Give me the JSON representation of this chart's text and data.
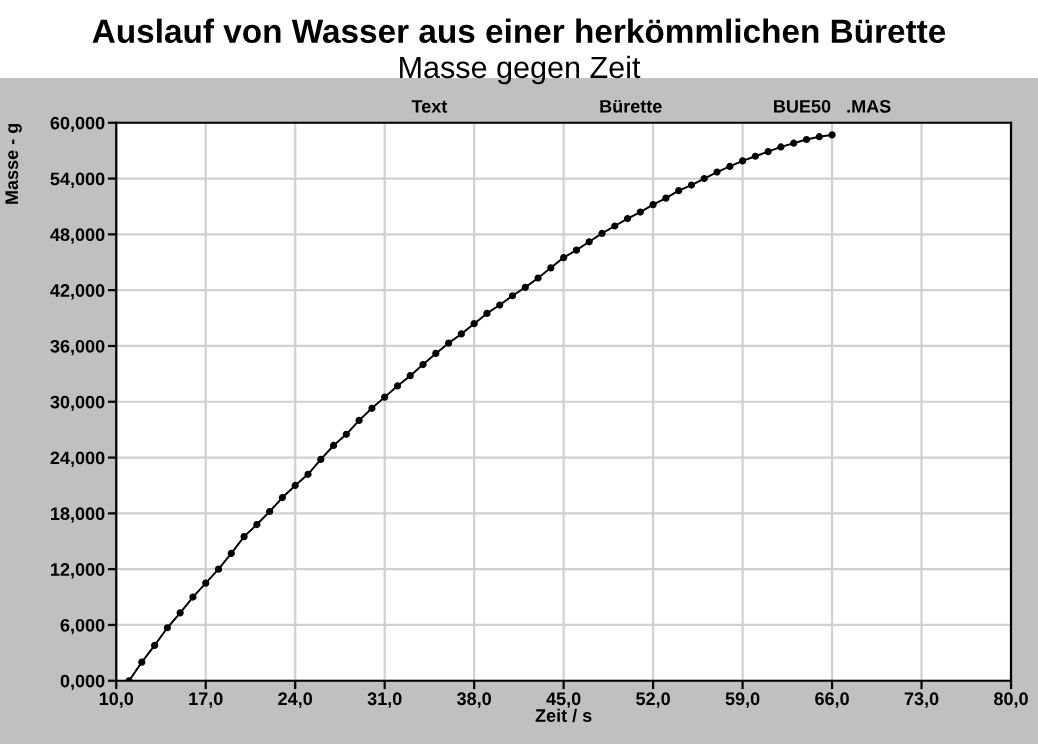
{
  "chart_data": {
    "type": "line",
    "title": "Auslauf von Wasser aus einer herkömmlichen Bürette",
    "subtitle": "Masse gegen Zeit",
    "annotations": [
      "Text",
      "Bürette",
      "BUE50   .MAS"
    ],
    "xlabel": "Zeit / s",
    "ylabel": "Masse - g",
    "x": [
      11,
      12,
      13,
      14,
      15,
      16,
      17,
      18,
      19,
      20,
      21,
      22,
      23,
      24,
      25,
      26,
      27,
      28,
      29,
      30,
      31,
      32,
      33,
      34,
      35,
      36,
      37,
      38,
      39,
      40,
      41,
      42,
      43,
      44,
      45,
      46,
      47,
      48,
      49,
      50,
      51,
      52,
      53,
      54,
      55,
      56,
      57,
      58,
      59,
      60,
      61,
      62,
      63,
      64,
      65,
      66
    ],
    "series": [
      {
        "color": "#000000",
        "values": [
          0,
          2.0,
          3.8,
          5.7,
          7.3,
          9.0,
          10.5,
          12.0,
          13.7,
          15.5,
          16.8,
          18.2,
          19.7,
          21.0,
          22.2,
          23.8,
          25.3,
          26.5,
          28.0,
          29.3,
          30.5,
          31.7,
          32.8,
          34.0,
          35.2,
          36.3,
          37.3,
          38.4,
          39.5,
          40.4,
          41.4,
          42.3,
          43.3,
          44.4,
          45.5,
          46.3,
          47.2,
          48.1,
          48.9,
          49.7,
          50.4,
          51.2,
          51.9,
          52.7,
          53.3,
          54.0,
          54.7,
          55.3,
          55.9,
          56.4,
          56.9,
          57.4,
          57.8,
          58.2,
          58.5,
          58.7
        ]
      }
    ],
    "xlim": [
      10,
      80
    ],
    "xticks": [
      {
        "value": 10,
        "label": "10,0"
      },
      {
        "value": 17,
        "label": "17,0"
      },
      {
        "value": 24,
        "label": "24,0"
      },
      {
        "value": 31,
        "label": "31,0"
      },
      {
        "value": 38,
        "label": "38,0"
      },
      {
        "value": 45,
        "label": "45,0"
      },
      {
        "value": 52,
        "label": "52,0"
      },
      {
        "value": 59,
        "label": "59,0"
      },
      {
        "value": 66,
        "label": "66,0"
      },
      {
        "value": 73,
        "label": "73,0"
      },
      {
        "value": 80,
        "label": "80,0"
      }
    ],
    "ylim": [
      0,
      60
    ],
    "yticks": [
      {
        "value": 0,
        "label": "0,000"
      },
      {
        "value": 6,
        "label": "6,000"
      },
      {
        "value": 12,
        "label": "12,000"
      },
      {
        "value": 18,
        "label": "18,000"
      },
      {
        "value": 24,
        "label": "24,000"
      },
      {
        "value": 30,
        "label": "30,000"
      },
      {
        "value": 36,
        "label": "36,000"
      },
      {
        "value": 42,
        "label": "42,000"
      },
      {
        "value": 48,
        "label": "48,000"
      },
      {
        "value": 54,
        "label": "54,000"
      },
      {
        "value": 60,
        "label": "60,000"
      }
    ],
    "grid": true,
    "marker": "circle",
    "line_style": "solid",
    "legend": false
  }
}
